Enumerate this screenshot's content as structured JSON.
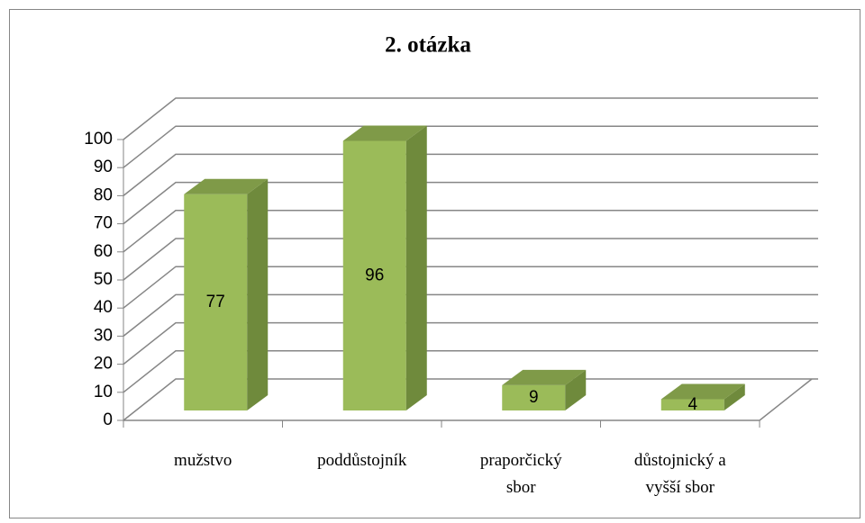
{
  "chart_data": {
    "type": "bar3d",
    "title": "2. otázka",
    "categories": [
      "mužstvo",
      "poddůstojník",
      "praporčický\nsbor",
      "důstojnický a\nvyšší sbor"
    ],
    "values": [
      77,
      96,
      9,
      4
    ],
    "color": "#9bbb59",
    "ylim": [
      0,
      100
    ],
    "yticks": [
      0,
      10,
      20,
      30,
      40,
      50,
      60,
      70,
      80,
      90,
      100
    ],
    "grid": true
  }
}
